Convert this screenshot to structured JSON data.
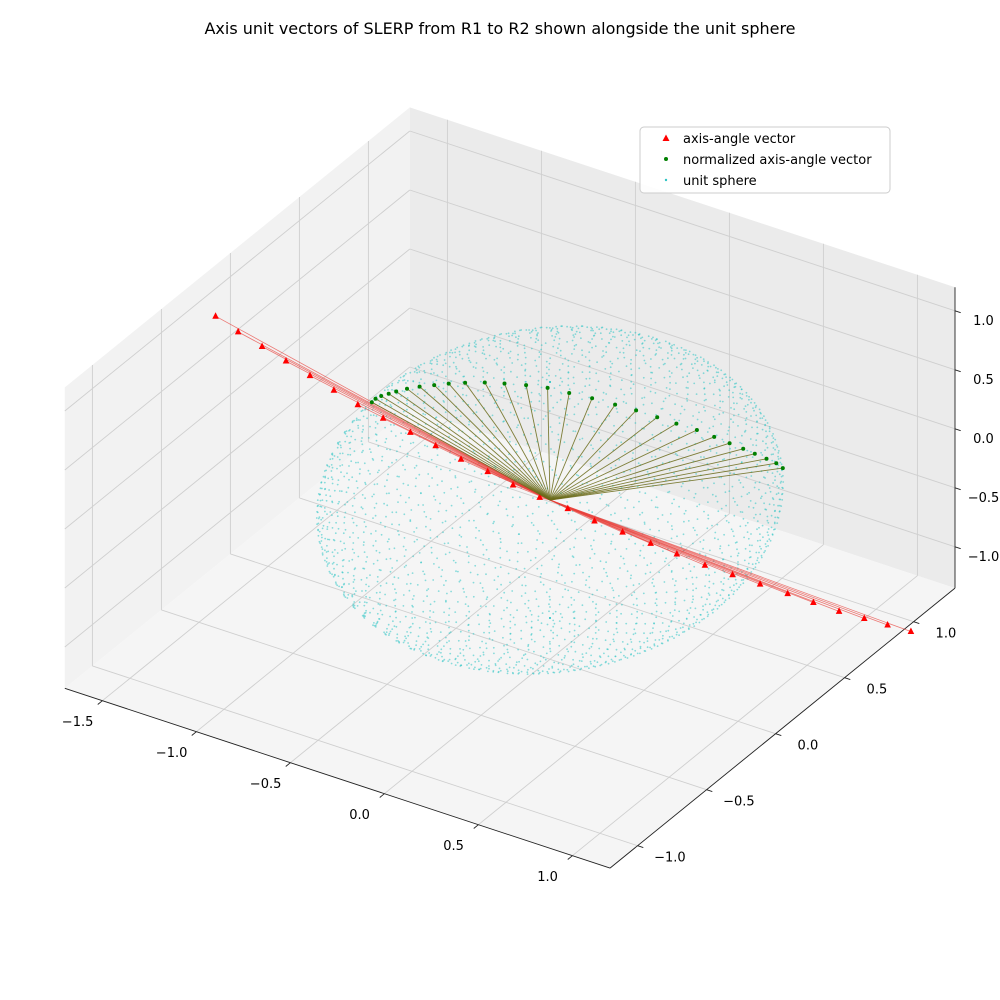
{
  "chart_data": {
    "type": "scatter",
    "projection": "3d",
    "title": "Axis unit vectors of SLERP from R1 to R2 shown alongside the unit sphere",
    "xlabel": "",
    "ylabel": "",
    "zlabel": "",
    "grid": true,
    "legend_position": "top-right",
    "axes": {
      "x": {
        "range": [
          -1.7,
          1.2
        ],
        "ticks": [
          -1.5,
          -1.0,
          -0.5,
          0.0,
          0.5,
          1.0
        ],
        "tick_labels": [
          "−1.5",
          "−1.0",
          "−0.5",
          "0.0",
          "0.5",
          "1.0"
        ]
      },
      "y": {
        "range": [
          -1.2,
          1.3
        ],
        "ticks": [
          -1.0,
          -0.5,
          0.0,
          0.5,
          1.0
        ],
        "tick_labels": [
          "−1.0",
          "−0.5",
          "0.0",
          "0.5",
          "1.0"
        ]
      },
      "z": {
        "range": [
          -1.35,
          1.2
        ],
        "ticks": [
          -1.0,
          -0.5,
          0.0,
          0.5,
          1.0
        ],
        "tick_labels": [
          "−1.0",
          "−0.5",
          "0.0",
          "0.5",
          "1.0"
        ]
      }
    },
    "series": [
      {
        "name": "axis-angle vector",
        "marker": "triangle",
        "color": "#ff0000",
        "line_color": "#e8413c",
        "points": [
          {
            "x": -1.61,
            "y": -0.23,
            "z": 0.93
          },
          {
            "x": -1.49,
            "y": -0.23,
            "z": 0.86
          },
          {
            "x": -1.37,
            "y": -0.22,
            "z": 0.79
          },
          {
            "x": -1.25,
            "y": -0.21,
            "z": 0.72
          },
          {
            "x": -1.13,
            "y": -0.2,
            "z": 0.65
          },
          {
            "x": -1.01,
            "y": -0.19,
            "z": 0.58
          },
          {
            "x": -0.89,
            "y": -0.18,
            "z": 0.51
          },
          {
            "x": -0.77,
            "y": -0.16,
            "z": 0.44
          },
          {
            "x": -0.64,
            "y": -0.14,
            "z": 0.37
          },
          {
            "x": -0.52,
            "y": -0.12,
            "z": 0.3
          },
          {
            "x": -0.4,
            "y": -0.1,
            "z": 0.23
          },
          {
            "x": -0.28,
            "y": -0.07,
            "z": 0.16
          },
          {
            "x": -0.16,
            "y": -0.05,
            "z": 0.09
          },
          {
            "x": -0.04,
            "y": -0.02,
            "z": 0.02
          },
          {
            "x": 0.08,
            "y": 0.02,
            "z": -0.05
          },
          {
            "x": 0.2,
            "y": 0.05,
            "z": -0.12
          },
          {
            "x": 0.32,
            "y": 0.09,
            "z": -0.19
          },
          {
            "x": 0.44,
            "y": 0.13,
            "z": -0.26
          },
          {
            "x": 0.55,
            "y": 0.17,
            "z": -0.33
          },
          {
            "x": 0.67,
            "y": 0.21,
            "z": -0.4
          },
          {
            "x": 0.78,
            "y": 0.26,
            "z": -0.47
          },
          {
            "x": 0.89,
            "y": 0.31,
            "z": -0.54
          },
          {
            "x": 1.0,
            "y": 0.36,
            "z": -0.61
          },
          {
            "x": 1.1,
            "y": 0.41,
            "z": -0.68
          },
          {
            "x": 1.2,
            "y": 0.46,
            "z": -0.75
          },
          {
            "x": 1.29,
            "y": 0.52,
            "z": -0.82
          },
          {
            "x": 1.37,
            "y": 0.58,
            "z": -0.89
          },
          {
            "x": 1.45,
            "y": 0.64,
            "z": -0.96
          }
        ]
      },
      {
        "name": "normalized axis-angle vector",
        "marker": "dot",
        "color": "#008000",
        "line_color": "#6b6b1a",
        "points": [
          {
            "x": -0.86,
            "y": -0.12,
            "z": 0.49
          },
          {
            "x": -0.84,
            "y": -0.12,
            "z": 0.53
          },
          {
            "x": -0.81,
            "y": -0.12,
            "z": 0.57
          },
          {
            "x": -0.77,
            "y": -0.12,
            "z": 0.61
          },
          {
            "x": -0.73,
            "y": -0.12,
            "z": 0.65
          },
          {
            "x": -0.68,
            "y": -0.11,
            "z": 0.69
          },
          {
            "x": -0.62,
            "y": -0.1,
            "z": 0.73
          },
          {
            "x": -0.55,
            "y": -0.09,
            "z": 0.77
          },
          {
            "x": -0.48,
            "y": -0.08,
            "z": 0.81
          },
          {
            "x": -0.4,
            "y": -0.07,
            "z": 0.85
          },
          {
            "x": -0.31,
            "y": -0.05,
            "z": 0.88
          },
          {
            "x": -0.22,
            "y": -0.03,
            "z": 0.9
          },
          {
            "x": -0.12,
            "y": -0.01,
            "z": 0.92
          },
          {
            "x": -0.02,
            "y": 0.01,
            "z": 0.93
          },
          {
            "x": 0.08,
            "y": 0.03,
            "z": 0.92
          },
          {
            "x": 0.18,
            "y": 0.06,
            "z": 0.9
          },
          {
            "x": 0.28,
            "y": 0.09,
            "z": 0.87
          },
          {
            "x": 0.37,
            "y": 0.12,
            "z": 0.84
          },
          {
            "x": 0.46,
            "y": 0.15,
            "z": 0.8
          },
          {
            "x": 0.54,
            "y": 0.18,
            "z": 0.76
          },
          {
            "x": 0.62,
            "y": 0.22,
            "z": 0.71
          },
          {
            "x": 0.69,
            "y": 0.25,
            "z": 0.66
          },
          {
            "x": 0.75,
            "y": 0.28,
            "z": 0.61
          },
          {
            "x": 0.8,
            "y": 0.31,
            "z": 0.56
          },
          {
            "x": 0.84,
            "y": 0.34,
            "z": 0.51
          },
          {
            "x": 0.88,
            "y": 0.37,
            "z": 0.46
          },
          {
            "x": 0.91,
            "y": 0.4,
            "z": 0.41
          },
          {
            "x": 0.93,
            "y": 0.42,
            "z": 0.36
          }
        ]
      },
      {
        "name": "unit sphere",
        "marker": "dot",
        "color": "#2ec4c4",
        "surface": "sphere",
        "radius": 1.0,
        "center": [
          0,
          0,
          0
        ]
      }
    ]
  }
}
